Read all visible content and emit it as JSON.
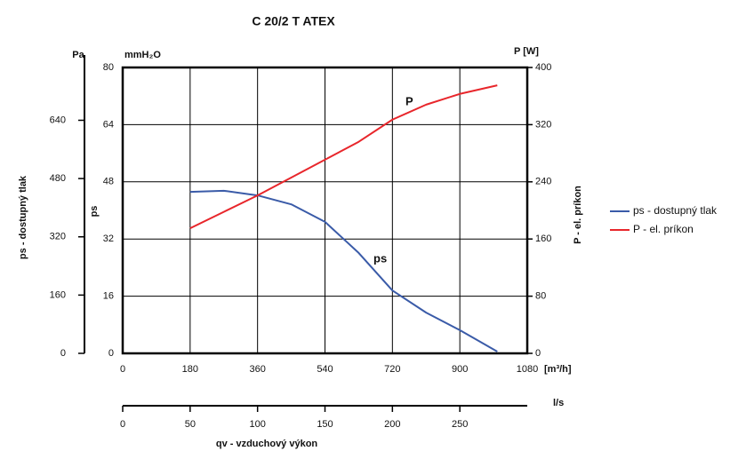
{
  "chart_data": {
    "type": "line",
    "title": "C 20/2 T ATEX",
    "x": [
      180,
      270,
      360,
      450,
      540,
      630,
      720,
      810,
      900,
      1000
    ],
    "xlim": [
      0,
      1080
    ],
    "xticks": [
      0,
      180,
      360,
      540,
      720,
      900,
      1080
    ],
    "x_unit": "[m³/h]",
    "x2lim": [
      0,
      300
    ],
    "x2ticks": [
      0,
      50,
      100,
      150,
      200,
      250
    ],
    "x2_unit": "l/s",
    "xlabel": "qv - vzduchový výkon",
    "ylim": [
      0,
      80
    ],
    "yticks": [
      0,
      16,
      32,
      48,
      64,
      80
    ],
    "y_unit": "mmH₂O",
    "ylabel": "ps",
    "y3lim": [
      0,
      785
    ],
    "y3ticks": [
      0,
      160,
      320,
      480,
      640
    ],
    "y3_unit": "Pa",
    "y3label": "ps - dostupný tlak",
    "y2lim": [
      0,
      400
    ],
    "y2ticks": [
      0,
      80,
      160,
      240,
      320,
      400
    ],
    "y2_unit": "P [W]",
    "y2label": "P - el. príkon",
    "grid": true,
    "legend": "right",
    "series": [
      {
        "name": "ps - dostupný tlak",
        "label": "ps",
        "color": "#3a5ba8",
        "values": [
          45.2,
          45.5,
          44.2,
          41.7,
          36.8,
          28.1,
          17.6,
          11.4,
          6.5,
          0.5
        ]
      },
      {
        "name": "P - el. príkon",
        "label": "P",
        "color": "#e8262b",
        "axis": "y2",
        "values": [
          175,
          198,
          221,
          246,
          271,
          296,
          327,
          348,
          363,
          375
        ]
      }
    ]
  }
}
